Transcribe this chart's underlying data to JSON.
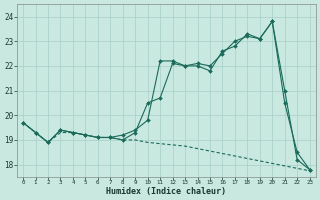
{
  "xlabel": "Humidex (Indice chaleur)",
  "bg_color": "#c8e8e0",
  "grid_color": "#a8cec8",
  "line_color": "#1a6b5a",
  "x_values": [
    0,
    1,
    2,
    3,
    4,
    5,
    6,
    7,
    8,
    9,
    10,
    11,
    12,
    13,
    14,
    15,
    16,
    17,
    18,
    19,
    20,
    21,
    22,
    23
  ],
  "line1": [
    19.7,
    19.3,
    18.9,
    19.4,
    19.3,
    19.2,
    19.1,
    19.1,
    19.2,
    19.4,
    19.8,
    22.2,
    22.2,
    22.0,
    22.0,
    21.8,
    22.6,
    22.8,
    23.3,
    23.1,
    23.8,
    21.0,
    18.2,
    17.8
  ],
  "line2": [
    19.7,
    19.3,
    18.9,
    19.4,
    19.3,
    19.2,
    19.1,
    19.1,
    19.0,
    19.3,
    20.5,
    20.7,
    22.1,
    22.0,
    22.1,
    22.0,
    22.5,
    23.0,
    23.2,
    23.1,
    23.8,
    20.5,
    18.5,
    17.8
  ],
  "line3": [
    19.7,
    19.3,
    18.9,
    19.3,
    19.3,
    19.2,
    19.1,
    19.1,
    19.0,
    19.0,
    18.9,
    18.85,
    18.8,
    18.75,
    18.65,
    18.55,
    18.45,
    18.35,
    18.25,
    18.15,
    18.05,
    17.95,
    17.85,
    17.75
  ],
  "ylim": [
    17.5,
    24.5
  ],
  "xlim": [
    -0.5,
    23.5
  ],
  "yticks": [
    18,
    19,
    20,
    21,
    22,
    23,
    24
  ],
  "xticks": [
    0,
    1,
    2,
    3,
    4,
    5,
    6,
    7,
    8,
    9,
    10,
    11,
    12,
    13,
    14,
    15,
    16,
    17,
    18,
    19,
    20,
    21,
    22,
    23
  ]
}
